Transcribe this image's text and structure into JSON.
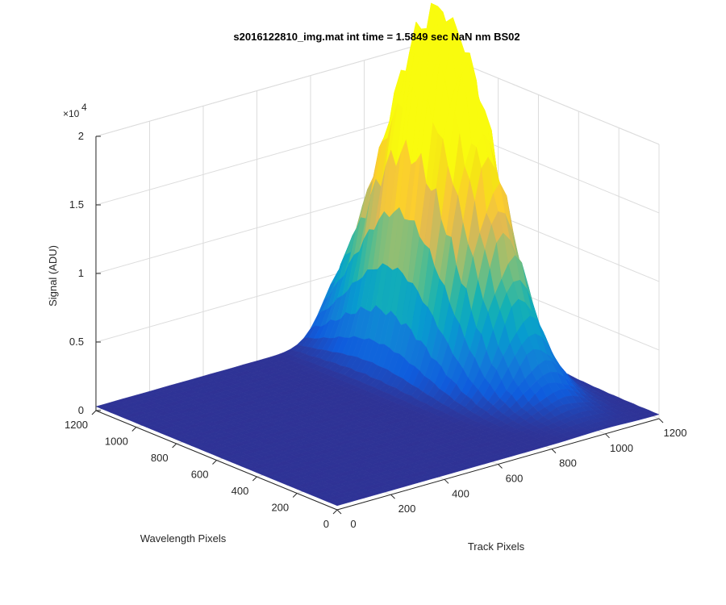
{
  "chart_data": {
    "type": "surface",
    "title": "s2016122810_img.mat int time = 1.5849 sec  NaN nm BS02",
    "xlabel": "Track Pixels",
    "ylabel": "Wavelength Pixels",
    "zlabel": "Signal (ADU)",
    "x_ticks": [
      0,
      200,
      400,
      600,
      800,
      1000,
      1200
    ],
    "y_ticks": [
      0,
      200,
      400,
      600,
      800,
      1000,
      1200
    ],
    "z_ticks": [
      0,
      0.5,
      1,
      1.5,
      2
    ],
    "z_tick_labels": [
      "0",
      "0.5",
      "1",
      "1.5",
      "2"
    ],
    "z_multiplier": "×10",
    "z_multiplier_exp": "4",
    "xlim": [
      0,
      1200
    ],
    "ylim": [
      0,
      1200
    ],
    "zlim": [
      0,
      20000
    ],
    "grid": true,
    "colormap": "parula",
    "peaks": [
      {
        "x": 920,
        "y": 830,
        "z": 16500,
        "sx": 75,
        "sy": 230
      },
      {
        "x": 1010,
        "y": 720,
        "z": 15800,
        "sx": 70,
        "sy": 220
      }
    ],
    "background_level": 300
  }
}
